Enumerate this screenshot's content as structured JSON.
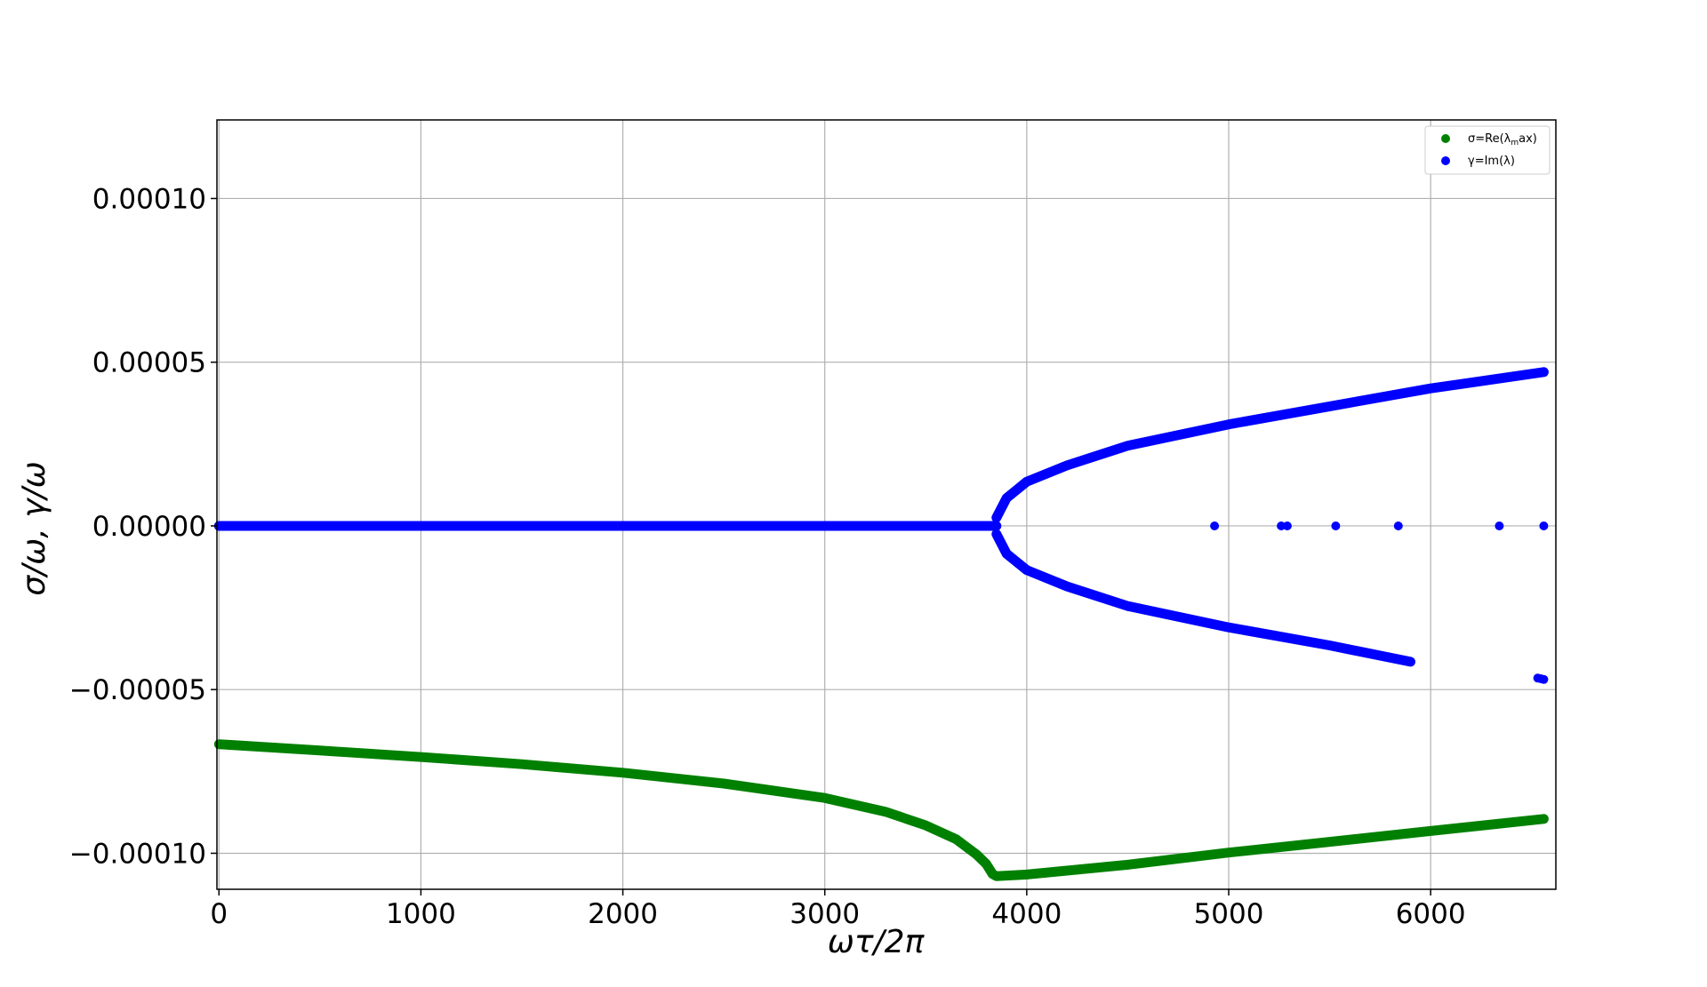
{
  "chart_data": {
    "type": "scatter",
    "title": "",
    "xlabel": "ωτ/2π",
    "ylabel": "σ/ω, γ/ω",
    "xlim": [
      -10,
      6620
    ],
    "ylim": [
      -0.000111,
      0.000124
    ],
    "grid": true,
    "legend_position": "top-right",
    "x_ticks": [
      {
        "value": 0,
        "label": "0"
      },
      {
        "value": 1000,
        "label": "1000"
      },
      {
        "value": 2000,
        "label": "2000"
      },
      {
        "value": 3000,
        "label": "3000"
      },
      {
        "value": 4000,
        "label": "4000"
      },
      {
        "value": 5000,
        "label": "5000"
      },
      {
        "value": 6000,
        "label": "6000"
      }
    ],
    "y_ticks": [
      {
        "value": 0.0001,
        "label": "0.00010"
      },
      {
        "value": 5e-05,
        "label": "0.00005"
      },
      {
        "value": 0.0,
        "label": "0.00000"
      },
      {
        "value": -5e-05,
        "label": "−0.00005"
      },
      {
        "value": -0.0001,
        "label": "−0.00010"
      }
    ],
    "series": [
      {
        "name": "σ=Re(λmax)",
        "legend_label": "σ=Re(λ_max)",
        "color": "#008000",
        "points": [
          [
            0,
            -6.67e-05
          ],
          [
            500,
            -6.86e-05
          ],
          [
            1000,
            -7.06e-05
          ],
          [
            1500,
            -7.28e-05
          ],
          [
            2000,
            -7.54e-05
          ],
          [
            2500,
            -7.87e-05
          ],
          [
            3000,
            -8.31e-05
          ],
          [
            3300,
            -8.73e-05
          ],
          [
            3500,
            -9.15e-05
          ],
          [
            3650,
            -9.57e-05
          ],
          [
            3750,
            -0.0001003
          ],
          [
            3800,
            -0.0001033
          ],
          [
            3830,
            -0.0001063
          ],
          [
            3850,
            -0.000107
          ],
          [
            4000,
            -0.0001065
          ],
          [
            4500,
            -0.0001035
          ],
          [
            5000,
            -9.98e-05
          ],
          [
            5500,
            -9.65e-05
          ],
          [
            6000,
            -9.32e-05
          ],
          [
            6560,
            -8.95e-05
          ]
        ]
      },
      {
        "name": "γ=Im(λ)",
        "legend_label": "γ=Im(λ)",
        "color": "#0000ff",
        "points_zero": [
          [
            0,
            0
          ],
          [
            3850,
            0
          ]
        ],
        "points_upper": [
          [
            3850,
            2.5e-06
          ],
          [
            3900,
            8.5e-06
          ],
          [
            4000,
            1.35e-05
          ],
          [
            4200,
            1.85e-05
          ],
          [
            4500,
            2.45e-05
          ],
          [
            5000,
            3.1e-05
          ],
          [
            5500,
            3.65e-05
          ],
          [
            6000,
            4.2e-05
          ],
          [
            6560,
            4.7e-05
          ]
        ],
        "points_lower": [
          [
            3850,
            -2.5e-06
          ],
          [
            3900,
            -8.5e-06
          ],
          [
            4000,
            -1.35e-05
          ],
          [
            4200,
            -1.85e-05
          ],
          [
            4500,
            -2.45e-05
          ],
          [
            5000,
            -3.1e-05
          ],
          [
            5500,
            -3.65e-05
          ],
          [
            5900,
            -4.15e-05
          ]
        ],
        "points_isolated": [
          [
            4930,
            0
          ],
          [
            5260,
            0
          ],
          [
            5290,
            0
          ],
          [
            5530,
            0
          ],
          [
            5840,
            0
          ],
          [
            6340,
            0
          ],
          [
            6560,
            0
          ],
          [
            6530,
            -4.65e-05
          ],
          [
            6545,
            -4.67e-05
          ],
          [
            6560,
            -4.69e-05
          ]
        ]
      }
    ]
  }
}
